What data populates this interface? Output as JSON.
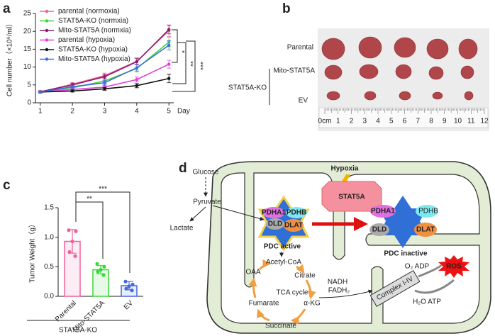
{
  "panels": [
    "a",
    "b",
    "c",
    "d"
  ],
  "chart_data": [
    {
      "type": "line",
      "x_label": "Day",
      "y_label": "Cell number（×10⁶/ml）",
      "x": [
        1,
        2,
        3,
        4,
        5
      ],
      "xlim": [
        0.85,
        5.15
      ],
      "xticks": [
        1,
        2,
        3,
        4,
        5
      ],
      "ylim": [
        0,
        25
      ],
      "yticks": [
        0,
        5,
        10,
        15,
        20,
        25
      ],
      "series": [
        {
          "name": "parental  (normoxia)",
          "color": "#f0609a",
          "values": [
            3,
            5.2,
            7.6,
            11.6,
            20.2
          ],
          "errors": [
            0.3,
            0.5,
            0.7,
            1.0,
            1.6
          ]
        },
        {
          "name": "STAT5A-KO  (normxia)",
          "color": "#3ad83a",
          "values": [
            3,
            4.2,
            6.1,
            9.6,
            17.0
          ],
          "errors": [
            0.3,
            0.5,
            0.6,
            1.0,
            1.3
          ]
        },
        {
          "name": "Mito-STAT5A (normxia)",
          "color": "#8b1a6b",
          "values": [
            3.1,
            5.0,
            7.3,
            11.5,
            20.5
          ],
          "errors": [
            0.3,
            0.5,
            0.6,
            0.9,
            1.2
          ]
        },
        {
          "name": "parental  (hypoxia)",
          "color": "#e23fd6",
          "values": [
            3,
            3.7,
            4.4,
            6.5,
            10.8
          ],
          "errors": [
            0.2,
            0.4,
            0.5,
            0.7,
            1.1
          ]
        },
        {
          "name": "STAT5A-KO  (hypoxia)",
          "color": "#111111",
          "values": [
            3,
            3.3,
            3.9,
            4.8,
            6.8
          ],
          "errors": [
            0.2,
            0.3,
            0.4,
            0.6,
            1.2
          ]
        },
        {
          "name": "Mito-STAT5A  (hypoxia)",
          "color": "#4169e1",
          "values": [
            3,
            4.5,
            5.6,
            9.8,
            16.1
          ],
          "errors": [
            0.2,
            0.4,
            0.6,
            0.9,
            1.3
          ]
        }
      ],
      "annotations": [
        "*",
        "**",
        "***"
      ]
    },
    {
      "type": "bar",
      "y_label": "Tumor Weight（g）",
      "categories": [
        "Parental",
        "Mito-STAT5A",
        "EV"
      ],
      "group_label": "STAT5A-KO",
      "values": [
        0.93,
        0.45,
        0.18
      ],
      "errors": [
        0.2,
        0.07,
        0.07
      ],
      "colors": [
        "#f0609a",
        "#3ad83a",
        "#4169e1"
      ],
      "points": [
        [
          1.12,
          1.1,
          0.93,
          0.75,
          0.68
        ],
        [
          0.55,
          0.5,
          0.45,
          0.42,
          0.36
        ],
        [
          0.25,
          0.2,
          0.17,
          0.13,
          0.1
        ]
      ],
      "ylim": [
        0,
        1.5
      ],
      "yticks": [
        {
          "value": 0,
          "label": "0.0"
        },
        0.5,
        {
          "value": 1,
          "label": "1.0"
        },
        1.5
      ],
      "annotations": [
        "**",
        "***"
      ]
    }
  ],
  "photo": {
    "rows": [
      "Parental",
      "Mito-STAT5A",
      "EV"
    ],
    "group_label": "STAT5A-KO",
    "ruler": [
      "0cm",
      "1",
      "2",
      "3",
      "4",
      "5",
      "6",
      "7",
      "8",
      "9",
      "10",
      "11",
      "12"
    ]
  },
  "diagram": {
    "glucose": "Glucose",
    "pyruvate": "Pyruvate",
    "lactate": "Lactate",
    "hypoxia": "Hypoxia",
    "stat5a": "STAT5A",
    "pdha1": "PDHA1",
    "pdhb": "PDHB",
    "dld": "DLD",
    "dlat": "DLAT",
    "pdc_active": "PDC active",
    "pdc_inactive": "PDC inactive",
    "acetyl_coa": "Acetyl-CoA",
    "citrate": "Citrate",
    "oaa": "OAA",
    "tca": "TCA cycle",
    "fumarate": "Fumarate",
    "akg": "α-KG",
    "succinate": "Succinate",
    "nadh": "NADH",
    "fadh2": "FADH₂",
    "complex": "Complex I-IV",
    "o2_adp": "O₂ ADP",
    "ros": "ROS",
    "h2o_atp": "H₂O ATP"
  }
}
